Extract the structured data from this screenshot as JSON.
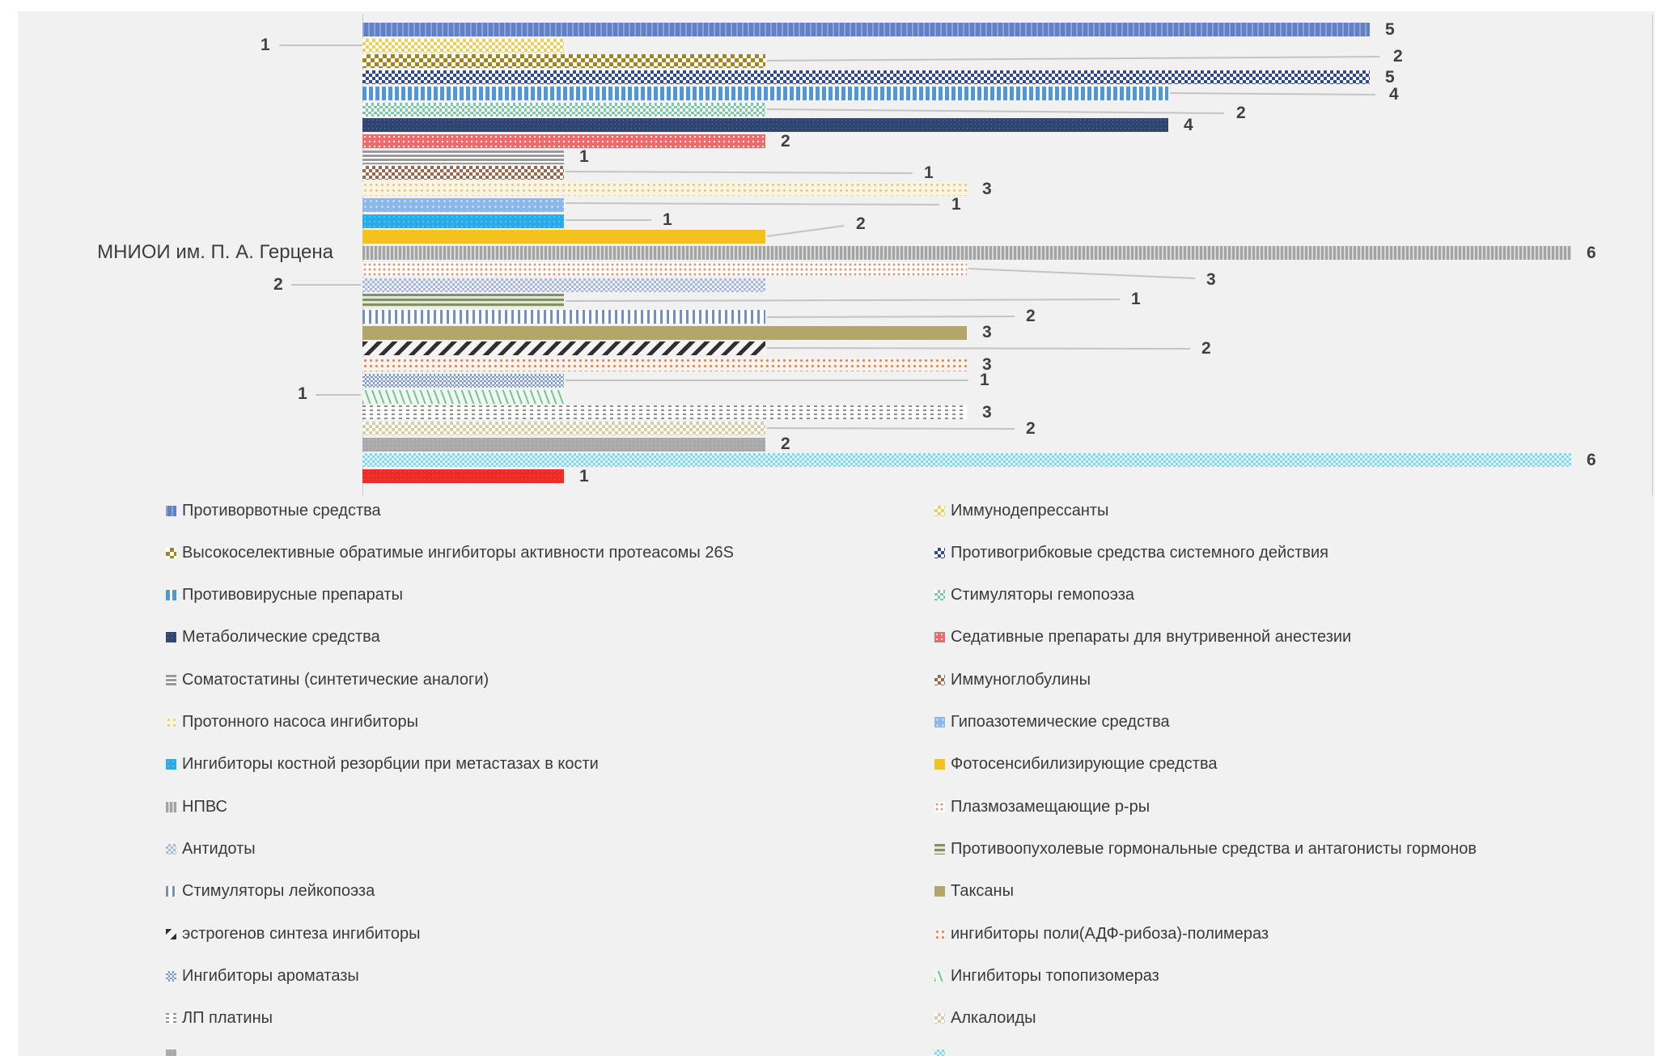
{
  "page": {
    "background_color": "#ffffff",
    "panel_color": "#f1f1f2",
    "leader_line_color": "#c4c4c4",
    "label_color": "#404040"
  },
  "chart_data": {
    "type": "bar",
    "orientation": "horizontal",
    "title": "",
    "xlabel": "",
    "ylabel": "",
    "category": "МНИОИ им. П. А. Герцена",
    "xlim": [
      0,
      6.4
    ],
    "grid": false,
    "data_labels_shown": true,
    "legend_position": "bottom, two columns",
    "series": [
      {
        "name": "Противорвотные средства",
        "value": 5,
        "pattern": "pt1"
      },
      {
        "name": "Иммунодепрессанты",
        "value": 1,
        "pattern": "pt2"
      },
      {
        "name": "Высокоселективные обратимые ингибиторы активности протеасомы 26S",
        "value": 2,
        "pattern": "pt3"
      },
      {
        "name": "Противогрибковые средства системного действия",
        "value": 5,
        "pattern": "pt4"
      },
      {
        "name": "Противовирусные препараты",
        "value": 4,
        "pattern": "pt5"
      },
      {
        "name": "Стимуляторы гемопоэза",
        "value": 2,
        "pattern": "pt6"
      },
      {
        "name": "Метаболические средства",
        "value": 4,
        "pattern": "pt7"
      },
      {
        "name": "Седативные препараты для внутривенной анестезии",
        "value": 2,
        "pattern": "pt8"
      },
      {
        "name": "Соматостатины (синтетические аналоги)",
        "value": 1,
        "pattern": "pt9"
      },
      {
        "name": "Иммуноглобулины",
        "value": 1,
        "pattern": "pt10"
      },
      {
        "name": "Протонного насоса ингибиторы",
        "value": 3,
        "pattern": "pt11"
      },
      {
        "name": "Гипоазотемические средства",
        "value": 1,
        "pattern": "pt12"
      },
      {
        "name": "Ингибиторы костной резорбции при метастазах в кости",
        "value": 1,
        "pattern": "pt13"
      },
      {
        "name": "Фотосенсибилизирующие средства",
        "value": 2,
        "pattern": "pt14"
      },
      {
        "name": "НПВС",
        "value": 6,
        "pattern": "pt15"
      },
      {
        "name": "Плазмозамещающие р-ры",
        "value": 3,
        "pattern": "pt16"
      },
      {
        "name": "Антидоты",
        "value": 2,
        "pattern": "pt17"
      },
      {
        "name": "Противоопухолевые гормональные средства и антагонисты гормонов",
        "value": 1,
        "pattern": "pt18"
      },
      {
        "name": "Стимуляторы лейкопоэза",
        "value": 2,
        "pattern": "pt19"
      },
      {
        "name": "Таксаны",
        "value": 3,
        "pattern": "pt20"
      },
      {
        "name": "эстрогенов синтеза ингибиторы",
        "value": 2,
        "pattern": "pt21"
      },
      {
        "name": "ингибиторы поли(АДФ-рибоза)-полимераз",
        "value": 3,
        "pattern": "pt22"
      },
      {
        "name": "Ингибиторы ароматазы",
        "value": 1,
        "pattern": "pt23"
      },
      {
        "name": "Ингибиторы  топопизомераз",
        "value": 1,
        "pattern": "pt24"
      },
      {
        "name": "ЛП платины",
        "value": 3,
        "pattern": "pt25"
      },
      {
        "name": "Алкалоиды",
        "value": 2,
        "pattern": "pt26"
      },
      {
        "name": "",
        "value": 2,
        "pattern": "pt27"
      },
      {
        "name": "",
        "value": 6,
        "pattern": "pt28"
      },
      {
        "name": "",
        "value": 1,
        "pattern": "pt29"
      }
    ],
    "legend_left_column": [
      "Противорвотные средства",
      "Высокоселективные обратимые ингибиторы активности протеасомы 26S",
      "Противовирусные препараты",
      "Метаболические средства",
      "Соматостатины (синтетические аналоги)",
      "Протонного насоса ингибиторы",
      "Ингибиторы костной резорбции при метастазах в кости",
      "НПВС",
      "Антидоты",
      "Стимуляторы лейкопоэза",
      "эстрогенов синтеза ингибиторы",
      "Ингибиторы ароматазы",
      "ЛП платины"
    ],
    "legend_right_column": [
      "Иммунодепрессанты",
      "Противогрибковые средства системного действия",
      "Стимуляторы гемопоэза",
      "Седативные препараты для внутривенной анестезии",
      "Иммуноглобулины",
      "Гипоазотемические средства",
      "Фотосенсибилизирующие средства",
      "Плазмозамещающие р-ры",
      "Противоопухолевые гормональные средства и антагонисты гормонов",
      "Таксаны",
      "ингибиторы поли(АДФ-рибоза)-полимераз",
      "Ингибиторы  топопизомераз",
      "Алкалоиды"
    ]
  }
}
